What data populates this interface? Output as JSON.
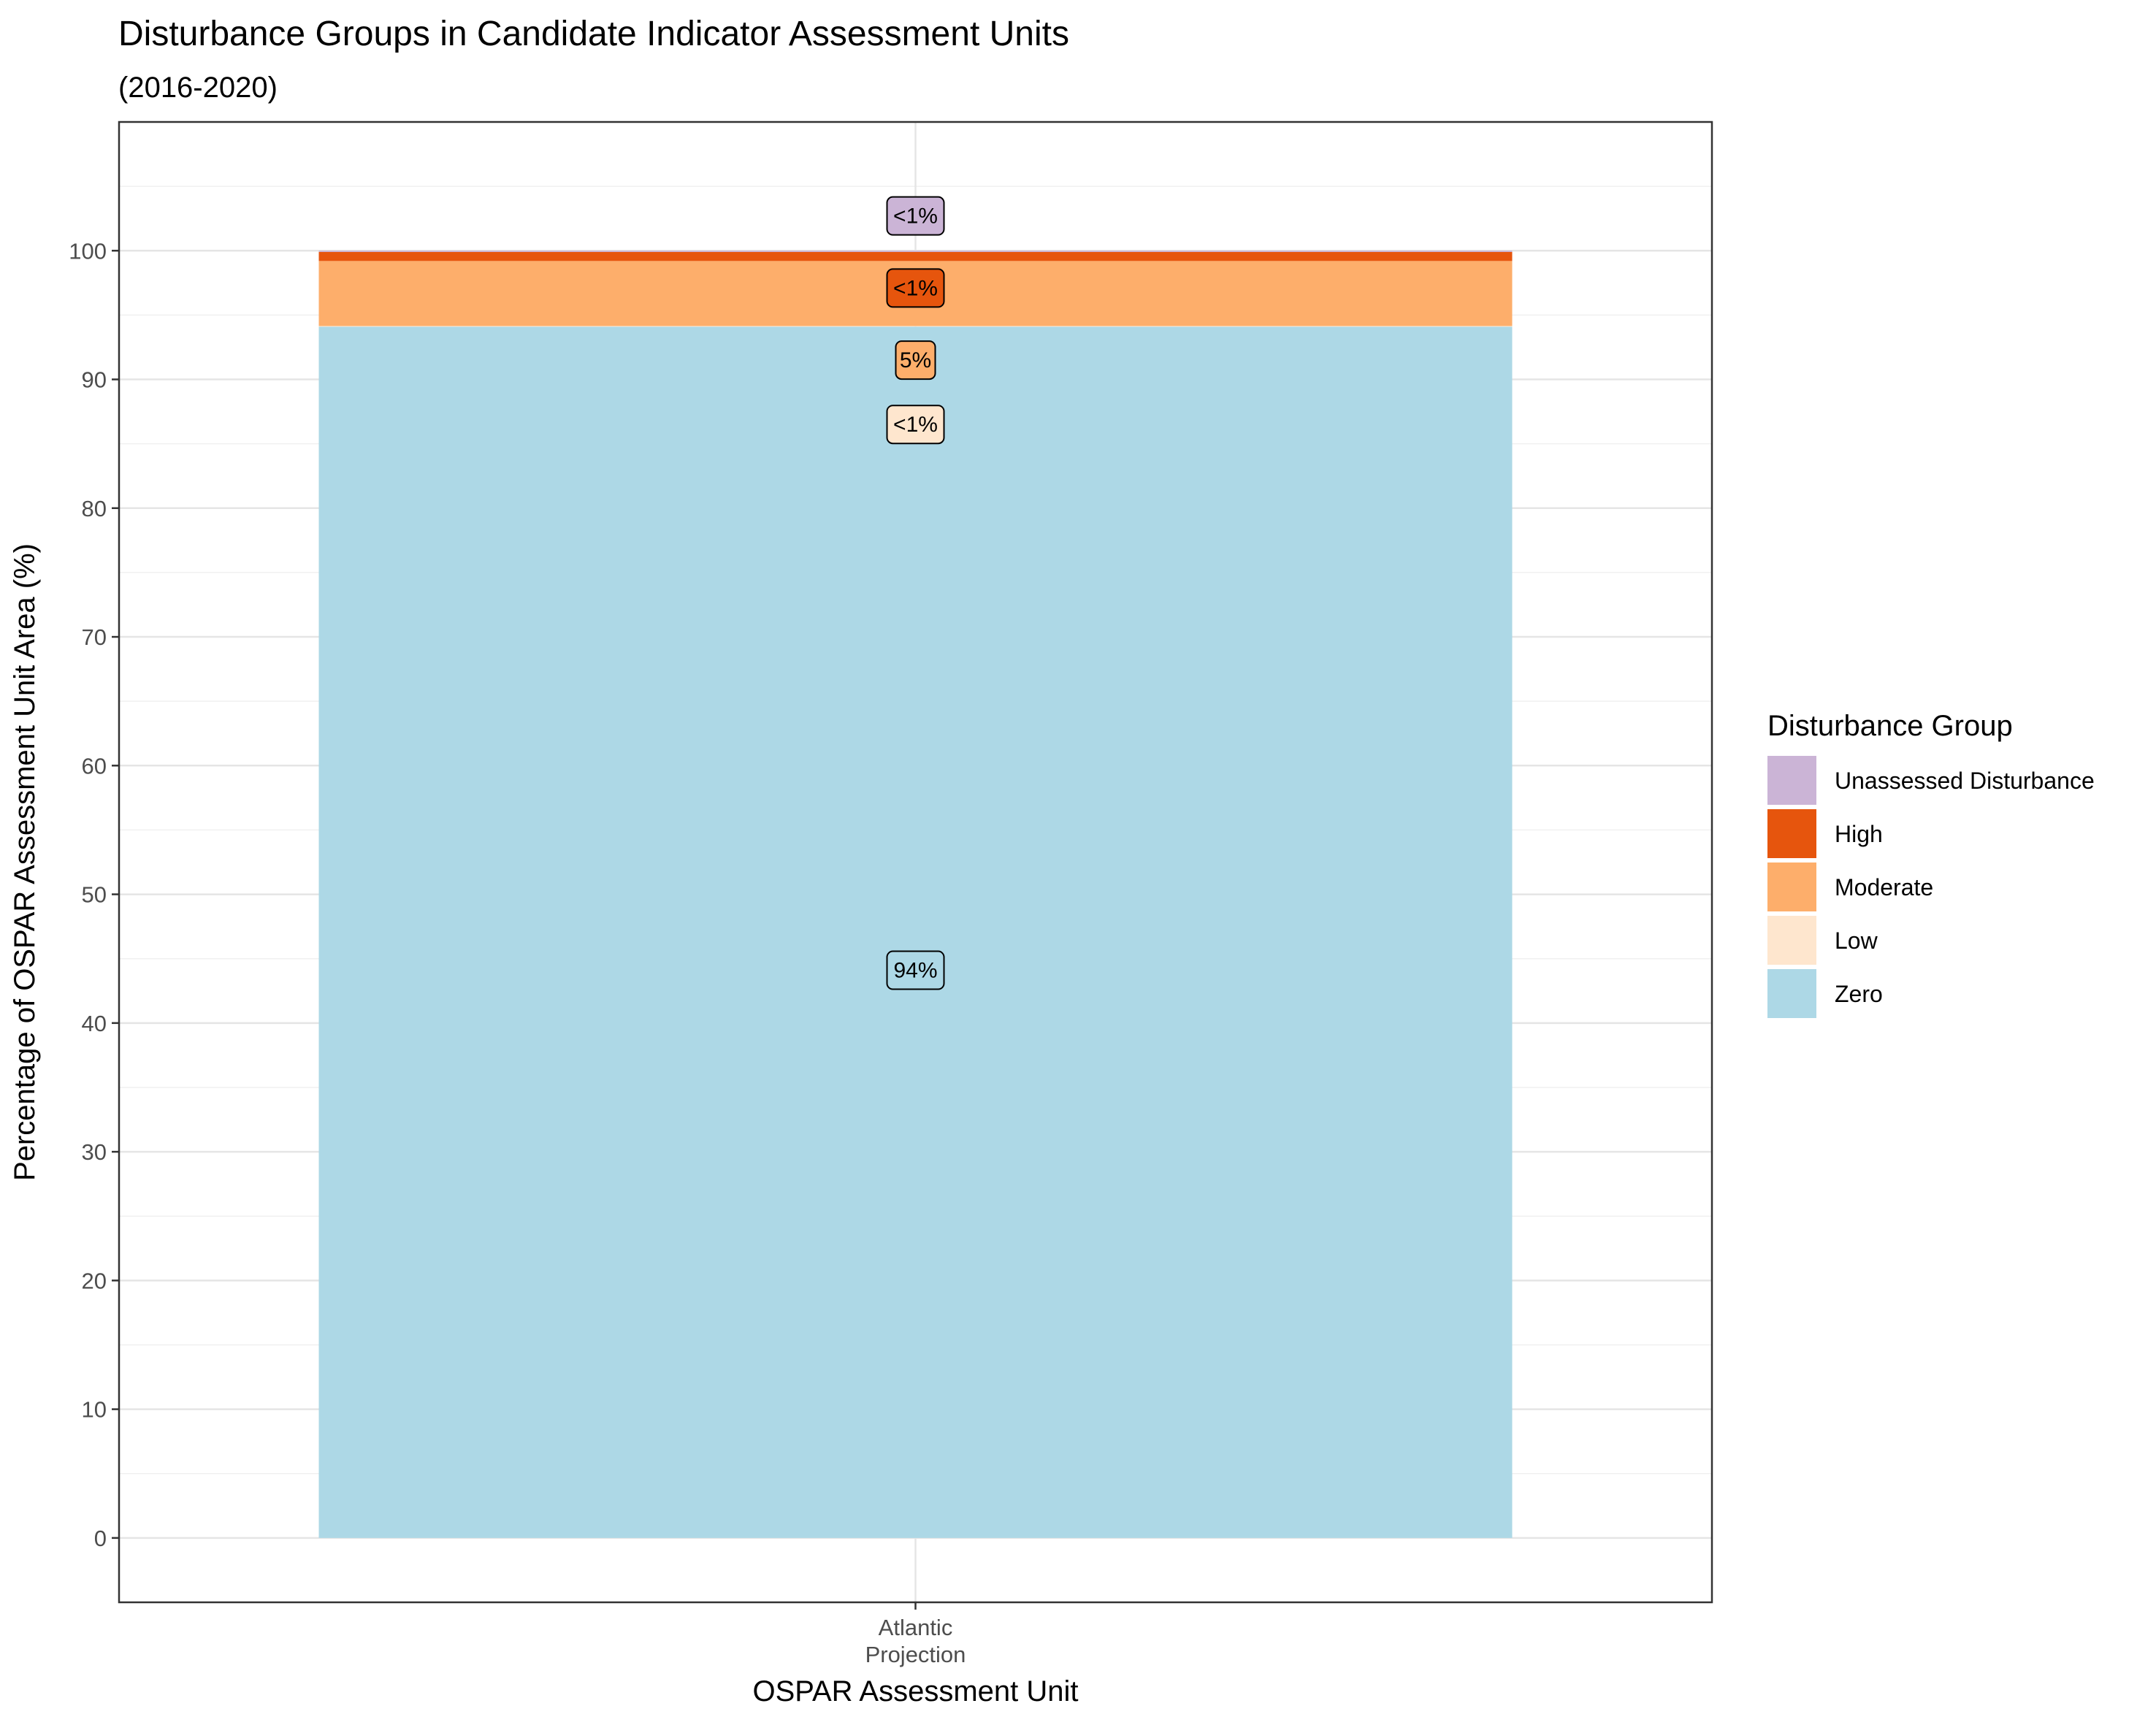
{
  "chart_data": {
    "type": "bar",
    "stacked": true,
    "title": "Disturbance Groups in Candidate Indicator Assessment Units",
    "subtitle": "(2016-2020)",
    "xlabel": "OSPAR Assessment Unit",
    "ylabel": "Percentage of OSPAR Assessment Unit Area (%)",
    "categories": [
      "Atlantic\nProjection"
    ],
    "ylim": [
      -5,
      110
    ],
    "yticks": [
      0,
      10,
      20,
      30,
      40,
      50,
      60,
      70,
      80,
      90,
      100
    ],
    "yticks_labels": [
      "0",
      "10",
      "20",
      "30",
      "40",
      "50",
      "60",
      "70",
      "80",
      "90",
      "100"
    ],
    "grid": true,
    "legend_title": "Disturbance Group",
    "legend_position": "right",
    "series": [
      {
        "name": "Zero",
        "values": [
          94.1
        ],
        "color": "#add8e6",
        "label": "94%",
        "label_y": 44.1
      },
      {
        "name": "Low",
        "values": [
          0.05
        ],
        "color": "#fee6ce",
        "label": "<1%",
        "label_y": 86.5
      },
      {
        "name": "Moderate",
        "values": [
          5.05
        ],
        "color": "#fdae6b",
        "label": "5%",
        "label_y": 91.5
      },
      {
        "name": "High",
        "values": [
          0.7
        ],
        "color": "#e6550d",
        "label": "<1%",
        "label_y": 97.1
      },
      {
        "name": "Unassessed Disturbance",
        "values": [
          0.1
        ],
        "color": "#cbb4d6",
        "label": "<1%",
        "label_y": 102.7
      }
    ],
    "legend_order": [
      "Unassessed Disturbance",
      "High",
      "Moderate",
      "Low",
      "Zero"
    ]
  }
}
